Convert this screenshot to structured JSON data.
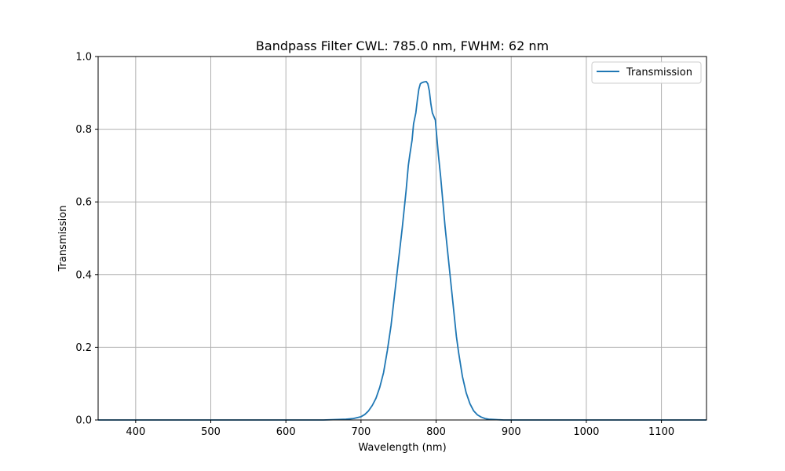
{
  "chart_data": {
    "type": "line",
    "title": "Bandpass Filter CWL: 785.0 nm, FWHM: 62 nm",
    "xlabel": "Wavelength (nm)",
    "ylabel": "Transmission",
    "xlim": [
      350,
      1160
    ],
    "ylim": [
      0,
      1.0
    ],
    "xticks": [
      400,
      500,
      600,
      700,
      800,
      900,
      1000,
      1100
    ],
    "yticks": [
      0.0,
      0.2,
      0.4,
      0.6,
      0.8,
      1.0
    ],
    "ytick_labels": [
      "0.0",
      "0.2",
      "0.4",
      "0.6",
      "0.8",
      "1.0"
    ],
    "grid": true,
    "legend": {
      "position": "top-right"
    },
    "series": [
      {
        "name": "Transmission",
        "color": "#1f77b4",
        "x": [
          350,
          600,
          650,
          680,
          690,
          700,
          705,
          710,
          715,
          720,
          725,
          730,
          735,
          740,
          745,
          750,
          755,
          757,
          760,
          763,
          765,
          768,
          770,
          773,
          775,
          777,
          779,
          781,
          784,
          787,
          789,
          791,
          793,
          795,
          797,
          799,
          800,
          803,
          806,
          809,
          812,
          815,
          818,
          821,
          824,
          827,
          830,
          835,
          840,
          845,
          850,
          855,
          860,
          865,
          870,
          880,
          890,
          900,
          950,
          1000,
          1160
        ],
        "y": [
          0.0,
          0.0,
          0.0,
          0.002,
          0.004,
          0.009,
          0.015,
          0.025,
          0.04,
          0.06,
          0.09,
          0.13,
          0.19,
          0.26,
          0.35,
          0.44,
          0.53,
          0.57,
          0.63,
          0.7,
          0.73,
          0.77,
          0.815,
          0.845,
          0.88,
          0.91,
          0.925,
          0.928,
          0.93,
          0.931,
          0.925,
          0.905,
          0.87,
          0.845,
          0.835,
          0.825,
          0.8,
          0.73,
          0.67,
          0.6,
          0.53,
          0.47,
          0.41,
          0.35,
          0.29,
          0.23,
          0.185,
          0.12,
          0.075,
          0.045,
          0.025,
          0.014,
          0.008,
          0.004,
          0.002,
          0.001,
          0.0,
          0.0,
          0.0,
          0.0,
          0.0
        ]
      }
    ]
  }
}
